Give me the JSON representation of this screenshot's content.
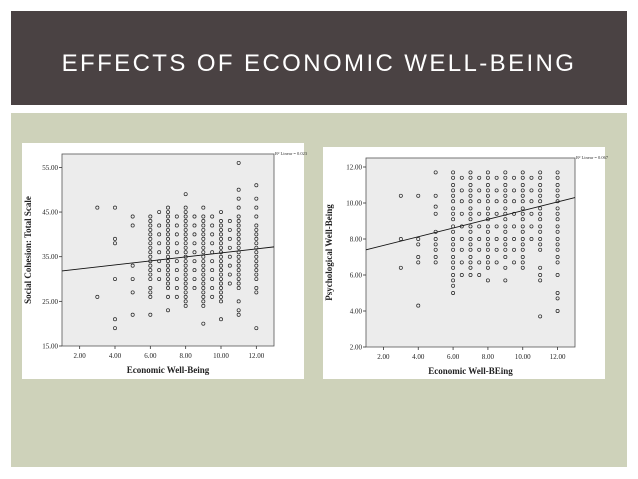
{
  "slide": {
    "title": "EFFECTS OF ECONOMIC WELL-BEING",
    "colors": {
      "header": "#4a4243",
      "body": "#ced2ba",
      "plot_bg": "#ececec"
    }
  },
  "chart_data": [
    {
      "type": "scatter",
      "title": "",
      "xlabel": "Economic Well-Being",
      "ylabel": "Social Cohesion: Total Scale",
      "xlim": [
        1.0,
        13.0
      ],
      "ylim": [
        15.0,
        58.0
      ],
      "xticks": [
        "2.00",
        "4.00",
        "6.00",
        "8.00",
        "10.00",
        "12.00"
      ],
      "xtick_values": [
        2,
        4,
        6,
        8,
        10,
        12
      ],
      "yticks": [
        "15.00",
        "25.00",
        "35.00",
        "45.00",
        "55.00"
      ],
      "ytick_values": [
        15,
        25,
        35,
        45,
        55
      ],
      "legend": "R² Linear = 0.023",
      "fit_line": {
        "x": [
          1.0,
          13.0
        ],
        "y": [
          31.8,
          37.2
        ]
      },
      "columns": [
        {
          "x": 3,
          "y": [
            46,
            26
          ]
        },
        {
          "x": 4,
          "y": [
            46,
            39,
            38,
            30,
            21,
            19
          ]
        },
        {
          "x": 5,
          "y": [
            44,
            42,
            33,
            30,
            27,
            22
          ]
        },
        {
          "x": 6,
          "y": [
            44,
            43,
            42,
            41,
            40,
            39,
            38,
            37,
            36,
            35,
            34,
            33,
            32,
            31,
            30,
            28,
            27,
            26,
            22
          ]
        },
        {
          "x": 6.5,
          "y": [
            45,
            42,
            40,
            38,
            36,
            34,
            32,
            30
          ]
        },
        {
          "x": 7,
          "y": [
            46,
            45,
            44,
            43,
            42,
            41,
            40,
            39,
            38,
            37,
            36,
            35,
            34,
            33,
            32,
            31,
            30,
            29,
            28,
            26,
            23
          ]
        },
        {
          "x": 7.5,
          "y": [
            44,
            42,
            40,
            38,
            36,
            34,
            32,
            30,
            28,
            26
          ]
        },
        {
          "x": 8,
          "y": [
            49,
            46,
            45,
            44,
            43,
            42,
            41,
            40,
            39,
            38,
            37,
            36,
            35,
            34,
            33,
            32,
            31,
            30,
            29,
            28,
            27,
            26,
            25,
            24
          ]
        },
        {
          "x": 8.5,
          "y": [
            44,
            42,
            40,
            38,
            36,
            34,
            32,
            30,
            28
          ]
        },
        {
          "x": 9,
          "y": [
            46,
            44,
            43,
            42,
            41,
            40,
            39,
            38,
            37,
            36,
            35,
            34,
            33,
            32,
            31,
            30,
            29,
            28,
            27,
            26,
            25,
            24,
            20
          ]
        },
        {
          "x": 9.5,
          "y": [
            44,
            42,
            40,
            38,
            36,
            34,
            32,
            30,
            28,
            26
          ]
        },
        {
          "x": 10,
          "y": [
            45,
            43,
            42,
            41,
            40,
            39,
            38,
            37,
            36,
            35,
            34,
            33,
            32,
            31,
            30,
            29,
            28,
            27,
            26,
            25,
            21
          ]
        },
        {
          "x": 10.5,
          "y": [
            43,
            41,
            39,
            37,
            35,
            33,
            31,
            29
          ]
        },
        {
          "x": 11,
          "y": [
            56,
            50,
            48,
            46,
            44,
            43,
            42,
            41,
            40,
            39,
            38,
            37,
            36,
            35,
            34,
            33,
            32,
            31,
            30,
            29,
            28,
            25,
            23,
            22
          ]
        },
        {
          "x": 12,
          "y": [
            51,
            48,
            46,
            44,
            42,
            41,
            40,
            39,
            38,
            37,
            36,
            35,
            34,
            33,
            32,
            31,
            30,
            28,
            27,
            19
          ]
        }
      ]
    },
    {
      "type": "scatter",
      "title": "",
      "xlabel": "Economic Well-BEing",
      "ylabel": "Psychological Well-Being",
      "xlim": [
        1.0,
        13.0
      ],
      "ylim": [
        2.0,
        12.5
      ],
      "xticks": [
        "2.00",
        "4.00",
        "6.00",
        "8.00",
        "10.00",
        "12.00"
      ],
      "xtick_values": [
        2,
        4,
        6,
        8,
        10,
        12
      ],
      "yticks": [
        "2.00",
        "4.00",
        "6.00",
        "8.00",
        "10.00",
        "12.00"
      ],
      "ytick_values": [
        2,
        4,
        6,
        8,
        10,
        12
      ],
      "legend": "R² Linear = 0.067",
      "fit_line": {
        "x": [
          1.0,
          13.0
        ],
        "y": [
          7.4,
          10.3
        ]
      },
      "columns": [
        {
          "x": 3,
          "y": [
            10.4,
            8.0,
            6.4
          ]
        },
        {
          "x": 4,
          "y": [
            10.4,
            8.0,
            7.7,
            7.0,
            6.7,
            4.3
          ]
        },
        {
          "x": 5,
          "y": [
            11.7,
            10.4,
            9.8,
            9.4,
            8.4,
            8.0,
            7.7,
            7.4,
            7.0,
            6.7
          ]
        },
        {
          "x": 6,
          "y": [
            11.7,
            11.4,
            11.0,
            10.7,
            10.4,
            10.1,
            9.7,
            9.4,
            9.1,
            8.7,
            8.4,
            8.0,
            7.7,
            7.4,
            7.0,
            6.7,
            6.4,
            6.0,
            5.7,
            5.4,
            5.0
          ]
        },
        {
          "x": 6.5,
          "y": [
            11.4,
            10.7,
            10.1,
            9.4,
            8.7,
            8.0,
            7.4,
            6.7,
            6.0
          ]
        },
        {
          "x": 7,
          "y": [
            11.7,
            11.4,
            11.0,
            10.7,
            10.4,
            10.1,
            9.7,
            9.4,
            9.1,
            8.7,
            8.4,
            8.0,
            7.7,
            7.4,
            7.0,
            6.7,
            6.4,
            6.0
          ]
        },
        {
          "x": 7.5,
          "y": [
            11.4,
            10.7,
            10.1,
            9.4,
            8.7,
            8.0,
            7.4,
            6.7,
            6.0
          ]
        },
        {
          "x": 8,
          "y": [
            11.7,
            11.4,
            11.0,
            10.7,
            10.4,
            10.1,
            9.7,
            9.4,
            9.1,
            8.7,
            8.4,
            8.0,
            7.7,
            7.4,
            7.0,
            6.7,
            6.4,
            5.7
          ]
        },
        {
          "x": 8.5,
          "y": [
            11.4,
            10.7,
            10.1,
            9.4,
            8.7,
            8.0,
            7.4,
            6.7
          ]
        },
        {
          "x": 9,
          "y": [
            11.7,
            11.4,
            11.0,
            10.7,
            10.4,
            10.1,
            9.7,
            9.4,
            9.1,
            8.7,
            8.4,
            8.0,
            7.7,
            7.4,
            7.0,
            6.4,
            5.7
          ]
        },
        {
          "x": 9.5,
          "y": [
            11.4,
            10.7,
            10.1,
            9.4,
            8.7,
            8.0,
            7.4,
            6.7
          ]
        },
        {
          "x": 10,
          "y": [
            11.7,
            11.4,
            11.0,
            10.7,
            10.4,
            10.1,
            9.7,
            9.4,
            9.1,
            8.7,
            8.4,
            8.0,
            7.7,
            7.4,
            7.0,
            6.7,
            6.4
          ]
        },
        {
          "x": 10.5,
          "y": [
            11.4,
            10.7,
            10.1,
            9.4,
            8.7,
            8.0
          ]
        },
        {
          "x": 11,
          "y": [
            11.7,
            11.4,
            11.0,
            10.7,
            10.4,
            10.1,
            9.7,
            9.4,
            9.1,
            8.7,
            8.4,
            8.0,
            7.7,
            7.4,
            6.4,
            6.0,
            5.7,
            3.7
          ]
        },
        {
          "x": 12,
          "y": [
            11.7,
            11.4,
            11.0,
            10.7,
            10.4,
            10.1,
            9.7,
            9.4,
            9.1,
            8.7,
            8.4,
            8.0,
            7.7,
            7.4,
            7.0,
            6.7,
            6.0,
            5.0,
            4.7,
            4.0
          ]
        }
      ]
    }
  ]
}
